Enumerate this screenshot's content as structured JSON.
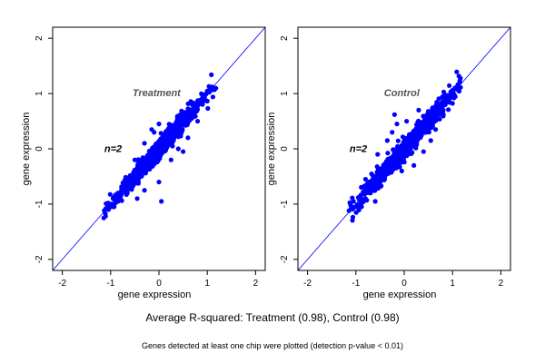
{
  "chart_data": [
    {
      "type": "scatter",
      "panel_label": "Treatment",
      "n_label": "n=2",
      "xlabel": "gene expression",
      "ylabel": "gene expression",
      "xlim": [
        -2.2,
        2.2
      ],
      "ylim": [
        -2.2,
        2.2
      ],
      "x_ticks": [
        -2,
        -1,
        0,
        1,
        2
      ],
      "y_ticks": [
        -2,
        -1,
        0,
        1,
        2
      ],
      "reference_line": "y = x",
      "point_color": "#0000ff",
      "line_color": "#0000ff",
      "cloud": {
        "x_range": [
          -1.1,
          1.15
        ],
        "spread": 0.08
      },
      "points": [
        {
          "x": -1.1,
          "y": -1.08
        },
        {
          "x": -1.05,
          "y": -0.98
        },
        {
          "x": -1.0,
          "y": -1.05
        },
        {
          "x": -0.95,
          "y": -0.9
        },
        {
          "x": -0.9,
          "y": -0.98
        },
        {
          "x": -0.85,
          "y": -0.8
        },
        {
          "x": -0.8,
          "y": -0.88
        },
        {
          "x": -0.75,
          "y": -0.7
        },
        {
          "x": -0.7,
          "y": -0.78
        },
        {
          "x": -0.65,
          "y": -0.6
        },
        {
          "x": -0.6,
          "y": -0.68
        },
        {
          "x": -0.55,
          "y": -0.5
        },
        {
          "x": -0.5,
          "y": -0.58
        },
        {
          "x": -0.45,
          "y": -0.4
        },
        {
          "x": -0.4,
          "y": -0.45
        },
        {
          "x": -0.35,
          "y": -0.3
        },
        {
          "x": -0.3,
          "y": -0.35
        },
        {
          "x": -0.25,
          "y": -0.2
        },
        {
          "x": -0.2,
          "y": -0.25
        },
        {
          "x": -0.15,
          "y": -0.1
        },
        {
          "x": -0.1,
          "y": -0.15
        },
        {
          "x": -0.05,
          "y": 0.0
        },
        {
          "x": 0.0,
          "y": -0.05
        },
        {
          "x": 0.05,
          "y": 0.1
        },
        {
          "x": 0.1,
          "y": 0.05
        },
        {
          "x": 0.15,
          "y": 0.2
        },
        {
          "x": 0.2,
          "y": 0.15
        },
        {
          "x": 0.25,
          "y": 0.3
        },
        {
          "x": 0.3,
          "y": 0.25
        },
        {
          "x": 0.35,
          "y": 0.4
        },
        {
          "x": 0.4,
          "y": 0.35
        },
        {
          "x": 0.45,
          "y": 0.5
        },
        {
          "x": 0.5,
          "y": 0.45
        },
        {
          "x": 0.55,
          "y": 0.6
        },
        {
          "x": 0.6,
          "y": 0.55
        },
        {
          "x": 0.65,
          "y": 0.7
        },
        {
          "x": 0.7,
          "y": 0.65
        },
        {
          "x": 0.75,
          "y": 0.8
        },
        {
          "x": 0.8,
          "y": 0.78
        },
        {
          "x": 0.85,
          "y": 0.88
        },
        {
          "x": 0.9,
          "y": 0.92
        },
        {
          "x": 0.95,
          "y": 0.98
        },
        {
          "x": 1.0,
          "y": 1.02
        },
        {
          "x": 1.05,
          "y": 1.08
        },
        {
          "x": 1.1,
          "y": 1.12
        },
        {
          "x": -0.45,
          "y": -0.9
        },
        {
          "x": -0.3,
          "y": -0.75
        },
        {
          "x": 0.05,
          "y": -0.95
        },
        {
          "x": 0.0,
          "y": -0.6
        },
        {
          "x": 0.25,
          "y": -0.2
        },
        {
          "x": 0.4,
          "y": 0.0
        },
        {
          "x": 0.5,
          "y": -0.05
        },
        {
          "x": 0.6,
          "y": 0.2
        },
        {
          "x": -0.15,
          "y": 0.35
        },
        {
          "x": -0.1,
          "y": 0.3
        },
        {
          "x": 0.0,
          "y": 0.45
        },
        {
          "x": -0.3,
          "y": 0.1
        },
        {
          "x": -0.5,
          "y": -0.2
        },
        {
          "x": 0.8,
          "y": 0.5
        }
      ]
    },
    {
      "type": "scatter",
      "panel_label": "Control",
      "n_label": "n=2",
      "xlabel": "gene expression",
      "ylabel": "gene expression",
      "xlim": [
        -2.2,
        2.2
      ],
      "ylim": [
        -2.2,
        2.2
      ],
      "x_ticks": [
        -2,
        -1,
        0,
        1,
        2
      ],
      "y_ticks": [
        -2,
        -1,
        0,
        1,
        2
      ],
      "reference_line": "y = x",
      "point_color": "#0000ff",
      "line_color": "#0000ff",
      "cloud": {
        "x_range": [
          -1.1,
          1.15
        ],
        "spread": 0.09
      },
      "points": [
        {
          "x": -1.1,
          "y": -1.08
        },
        {
          "x": -1.05,
          "y": -0.95
        },
        {
          "x": -1.0,
          "y": -1.05
        },
        {
          "x": -0.95,
          "y": -0.88
        },
        {
          "x": -0.9,
          "y": -0.98
        },
        {
          "x": -0.85,
          "y": -0.78
        },
        {
          "x": -0.8,
          "y": -0.9
        },
        {
          "x": -0.75,
          "y": -0.68
        },
        {
          "x": -0.7,
          "y": -0.8
        },
        {
          "x": -0.65,
          "y": -0.58
        },
        {
          "x": -0.6,
          "y": -0.7
        },
        {
          "x": -0.55,
          "y": -0.48
        },
        {
          "x": -0.5,
          "y": -0.58
        },
        {
          "x": -0.45,
          "y": -0.38
        },
        {
          "x": -0.4,
          "y": -0.45
        },
        {
          "x": -0.35,
          "y": -0.28
        },
        {
          "x": -0.3,
          "y": -0.35
        },
        {
          "x": -0.25,
          "y": -0.18
        },
        {
          "x": -0.2,
          "y": -0.25
        },
        {
          "x": -0.15,
          "y": -0.08
        },
        {
          "x": -0.1,
          "y": -0.15
        },
        {
          "x": -0.05,
          "y": 0.02
        },
        {
          "x": 0.0,
          "y": -0.05
        },
        {
          "x": 0.05,
          "y": 0.12
        },
        {
          "x": 0.1,
          "y": 0.05
        },
        {
          "x": 0.15,
          "y": 0.22
        },
        {
          "x": 0.2,
          "y": 0.15
        },
        {
          "x": 0.25,
          "y": 0.32
        },
        {
          "x": 0.3,
          "y": 0.25
        },
        {
          "x": 0.35,
          "y": 0.42
        },
        {
          "x": 0.4,
          "y": 0.35
        },
        {
          "x": 0.45,
          "y": 0.52
        },
        {
          "x": 0.5,
          "y": 0.45
        },
        {
          "x": 0.55,
          "y": 0.62
        },
        {
          "x": 0.6,
          "y": 0.55
        },
        {
          "x": 0.65,
          "y": 0.72
        },
        {
          "x": 0.7,
          "y": 0.65
        },
        {
          "x": 0.75,
          "y": 0.82
        },
        {
          "x": 0.8,
          "y": 0.78
        },
        {
          "x": 0.85,
          "y": 0.9
        },
        {
          "x": 0.9,
          "y": 0.92
        },
        {
          "x": 0.95,
          "y": 0.98
        },
        {
          "x": 1.0,
          "y": 1.02
        },
        {
          "x": 1.05,
          "y": 1.08
        },
        {
          "x": 1.1,
          "y": 1.12
        },
        {
          "x": -0.2,
          "y": 0.62
        },
        {
          "x": -0.15,
          "y": 0.45
        },
        {
          "x": -0.35,
          "y": 0.15
        },
        {
          "x": -0.55,
          "y": -0.1
        },
        {
          "x": -0.25,
          "y": 0.3
        },
        {
          "x": 0.05,
          "y": 0.5
        },
        {
          "x": 0.2,
          "y": -0.3
        },
        {
          "x": 0.4,
          "y": -0.05
        },
        {
          "x": 0.55,
          "y": 0.15
        },
        {
          "x": -0.6,
          "y": -0.95
        },
        {
          "x": 0.3,
          "y": 0.7
        },
        {
          "x": -0.05,
          "y": -0.4
        },
        {
          "x": 0.65,
          "y": 0.35
        },
        {
          "x": -0.8,
          "y": -0.55
        }
      ]
    }
  ],
  "summary_text": "Average R-squared: Treatment (0.98), Control (0.98)",
  "footnote_text": "Genes detected at least one chip were plotted (detection p-value < 0.01)"
}
